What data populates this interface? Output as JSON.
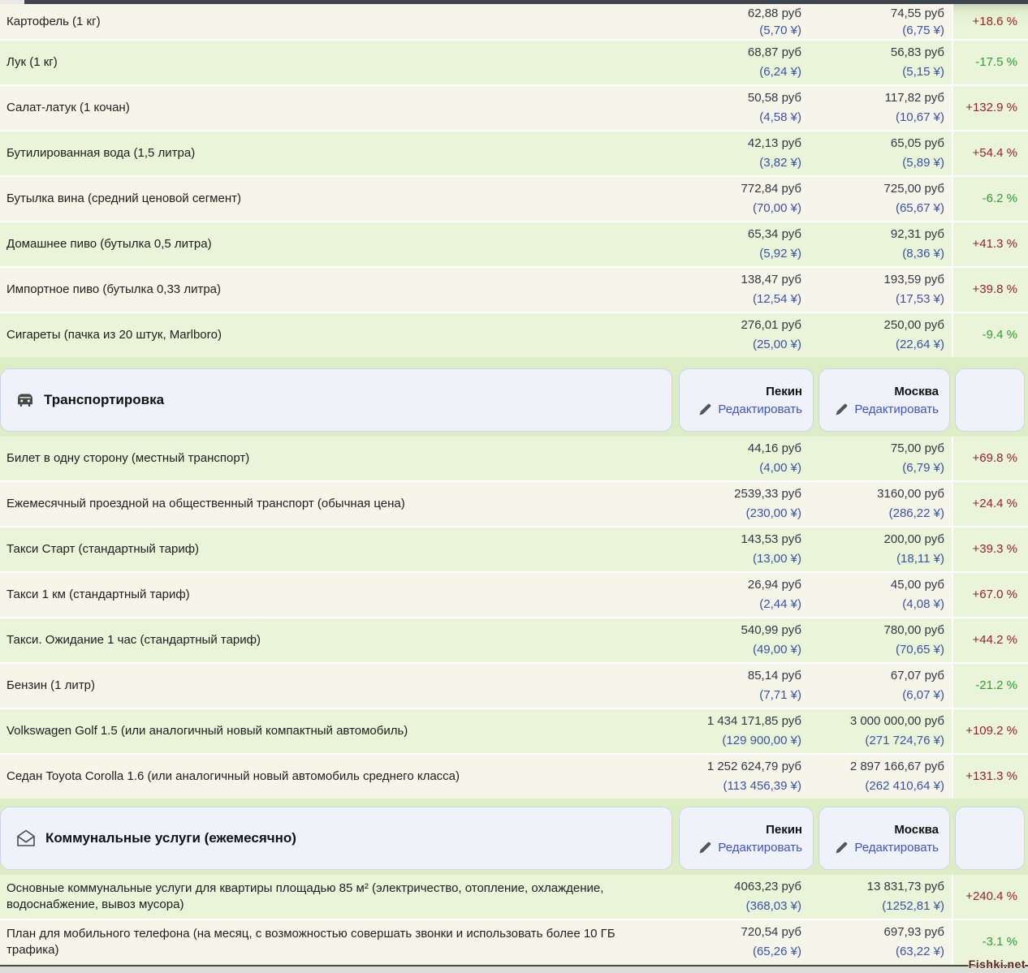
{
  "page": {
    "watermark": "Fishki.net"
  },
  "columns": {
    "city_a": "Пекин",
    "city_b": "Москва",
    "edit_label": "Редактировать"
  },
  "colors": {
    "page_background": "#ddeec6",
    "row_ivory": "#f5f6e9",
    "row_green": "#e9f4d9",
    "price_text": "#343743",
    "cny_link": "#3b50ac",
    "edit_link": "#4052cc",
    "percent_up_red": "#9c2126",
    "percent_down_green": "#2f9e33",
    "header_box_bg": "#f0f2fa",
    "header_box_border": "#c9d6ee"
  },
  "sections": [
    {
      "id": "food",
      "header": null,
      "alt_start": "ivory",
      "rows": [
        {
          "name": "Картофель (1 кг)",
          "beijing_rub": "62,88 руб",
          "beijing_cny": "(5,70 ¥)",
          "moscow_rub": "74,55 руб",
          "moscow_cny": "(6,75 ¥)",
          "pct": "+18.6 %",
          "pct_color": "red"
        },
        {
          "name": "Лук (1 кг)",
          "beijing_rub": "68,87 руб",
          "beijing_cny": "(6,24 ¥)",
          "moscow_rub": "56,83 руб",
          "moscow_cny": "(5,15 ¥)",
          "pct": "-17.5 %",
          "pct_color": "green"
        },
        {
          "name": "Салат-латук (1 кочан)",
          "beijing_rub": "50,58 руб",
          "beijing_cny": "(4,58 ¥)",
          "moscow_rub": "117,82 руб",
          "moscow_cny": "(10,67 ¥)",
          "pct": "+132.9 %",
          "pct_color": "red"
        },
        {
          "name": "Бутилированная вода (1,5 литра)",
          "beijing_rub": "42,13 руб",
          "beijing_cny": "(3,82 ¥)",
          "moscow_rub": "65,05 руб",
          "moscow_cny": "(5,89 ¥)",
          "pct": "+54.4 %",
          "pct_color": "red"
        },
        {
          "name": "Бутылка вина (средний ценовой сегмент)",
          "beijing_rub": "772,84 руб",
          "beijing_cny": "(70,00 ¥)",
          "moscow_rub": "725,00 руб",
          "moscow_cny": "(65,67 ¥)",
          "pct": "-6.2 %",
          "pct_color": "green"
        },
        {
          "name": "Домашнее пиво (бутылка 0,5 литра)",
          "beijing_rub": "65,34 руб",
          "beijing_cny": "(5,92 ¥)",
          "moscow_rub": "92,31 руб",
          "moscow_cny": "(8,36 ¥)",
          "pct": "+41.3 %",
          "pct_color": "red"
        },
        {
          "name": "Импортное пиво (бутылка 0,33 литра)",
          "beijing_rub": "138,47 руб",
          "beijing_cny": "(12,54 ¥)",
          "moscow_rub": "193,59 руб",
          "moscow_cny": "(17,53 ¥)",
          "pct": "+39.8 %",
          "pct_color": "red"
        },
        {
          "name": "Сигареты (пачка из 20 штук, Marlboro)",
          "beijing_rub": "276,01 руб",
          "beijing_cny": "(25,00 ¥)",
          "moscow_rub": "250,00 руб",
          "moscow_cny": "(22,64 ¥)",
          "pct": "-9.4 %",
          "pct_color": "green"
        }
      ]
    },
    {
      "id": "transport",
      "header": {
        "title": "Транспортировка",
        "icon": "car-icon"
      },
      "alt_start": "green",
      "rows": [
        {
          "name": "Билет в одну сторону (местный транспорт)",
          "beijing_rub": "44,16 руб",
          "beijing_cny": "(4,00 ¥)",
          "moscow_rub": "75,00 руб",
          "moscow_cny": "(6,79 ¥)",
          "pct": "+69.8 %",
          "pct_color": "red"
        },
        {
          "name": "Ежемесячный проездной на общественный транспорт (обычная цена)",
          "beijing_rub": "2539,33 руб",
          "beijing_cny": "(230,00 ¥)",
          "moscow_rub": "3160,00 руб",
          "moscow_cny": "(286,22 ¥)",
          "pct": "+24.4 %",
          "pct_color": "red"
        },
        {
          "name": "Такси Старт (стандартный тариф)",
          "beijing_rub": "143,53 руб",
          "beijing_cny": "(13,00 ¥)",
          "moscow_rub": "200,00 руб",
          "moscow_cny": "(18,11 ¥)",
          "pct": "+39.3 %",
          "pct_color": "red"
        },
        {
          "name": "Такси 1 км (стандартный тариф)",
          "beijing_rub": "26,94 руб",
          "beijing_cny": "(2,44 ¥)",
          "moscow_rub": "45,00 руб",
          "moscow_cny": "(4,08 ¥)",
          "pct": "+67.0 %",
          "pct_color": "red"
        },
        {
          "name": "Такси. Ожидание 1 час (стандартный тариф)",
          "beijing_rub": "540,99 руб",
          "beijing_cny": "(49,00 ¥)",
          "moscow_rub": "780,00 руб",
          "moscow_cny": "(70,65 ¥)",
          "pct": "+44.2 %",
          "pct_color": "red"
        },
        {
          "name": "Бензин (1 литр)",
          "beijing_rub": "85,14 руб",
          "beijing_cny": "(7,71 ¥)",
          "moscow_rub": "67,07 руб",
          "moscow_cny": "(6,07 ¥)",
          "pct": "-21.2 %",
          "pct_color": "green"
        },
        {
          "name": "Volkswagen Golf 1.5 (или аналогичный новый компактный автомобиль)",
          "beijing_rub": "1 434 171,85 руб",
          "beijing_cny": "(129 900,00 ¥)",
          "moscow_rub": "3 000 000,00 руб",
          "moscow_cny": "(271 724,76 ¥)",
          "pct": "+109.2 %",
          "pct_color": "red"
        },
        {
          "name": "Седан Toyota Corolla 1.6 (или аналогичный новый автомобиль среднего класса)",
          "beijing_rub": "1 252 624,79 руб",
          "beijing_cny": "(113 456,39 ¥)",
          "moscow_rub": "2 897 166,67 руб",
          "moscow_cny": "(262 410,64 ¥)",
          "pct": "+131.3 %",
          "pct_color": "red"
        }
      ]
    },
    {
      "id": "utilities",
      "header": {
        "title": "Коммунальные услуги (ежемесячно)",
        "icon": "envelope-icon"
      },
      "alt_start": "green",
      "rows": [
        {
          "name": "Основные коммунальные услуги для квартиры площадью 85 м² (электричество, отопление, охлаждение, водоснабжение, вывоз мусора)",
          "beijing_rub": "4063,23 руб",
          "beijing_cny": "(368,03 ¥)",
          "moscow_rub": "13 831,73 руб",
          "moscow_cny": "(1252,81 ¥)",
          "pct": "+240.4 %",
          "pct_color": "red"
        },
        {
          "name": "План для мобильного телефона (на месяц, с возможностью совершать звонки и использовать более 10 ГБ трафика)",
          "beijing_rub": "720,54 руб",
          "beijing_cny": "(65,26 ¥)",
          "moscow_rub": "697,93 руб",
          "moscow_cny": "(63,22 ¥)",
          "pct": "-3.1 %",
          "pct_color": "green"
        }
      ]
    }
  ]
}
